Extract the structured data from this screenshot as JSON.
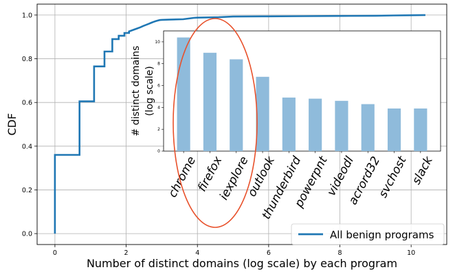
{
  "chart_data": [
    {
      "type": "line",
      "title": "",
      "xlabel": "Number of distinct domains (log scale) by each program",
      "ylabel": "CDF",
      "xlim": [
        -0.5,
        11.0
      ],
      "ylim": [
        -0.05,
        1.05
      ],
      "xticks": [
        "0",
        "2",
        "4",
        "6",
        "8",
        "10"
      ],
      "yticks": [
        "0.0",
        "0.2",
        "0.4",
        "0.6",
        "0.8",
        "1.0"
      ],
      "xtick_values": [
        0,
        2,
        4,
        6,
        8,
        10
      ],
      "ytick_values": [
        0.0,
        0.2,
        0.4,
        0.6,
        0.8,
        1.0
      ],
      "grid": true,
      "legend_position": "bottom-right",
      "series": [
        {
          "name": "All benign programs",
          "color": "#1f77b4",
          "step": true,
          "x": [
            0,
            0,
            0.69,
            0.69,
            1.1,
            1.1,
            1.39,
            1.39,
            1.61,
            1.61,
            1.79,
            1.79,
            1.95,
            1.95,
            2.08,
            2.08,
            2.2,
            2.3,
            2.4,
            2.48,
            2.56,
            2.64,
            2.71,
            2.77,
            2.83,
            2.89,
            2.94,
            3.0,
            3.2,
            3.6,
            3.9,
            4.0,
            4.6,
            5.0,
            6.0,
            7.0,
            8.0,
            9.0,
            9.5,
            10.0,
            10.4
          ],
          "y": [
            0.0,
            0.36,
            0.36,
            0.605,
            0.605,
            0.765,
            0.765,
            0.833,
            0.833,
            0.89,
            0.89,
            0.905,
            0.905,
            0.918,
            0.918,
            0.925,
            0.932,
            0.938,
            0.944,
            0.95,
            0.955,
            0.96,
            0.965,
            0.969,
            0.972,
            0.975,
            0.977,
            0.978,
            0.979,
            0.981,
            0.987,
            0.988,
            0.99,
            0.993,
            0.994,
            0.995,
            0.996,
            0.997,
            0.998,
            0.999,
            1.0
          ]
        }
      ]
    },
    {
      "type": "bar",
      "title": "",
      "xlabel": "",
      "ylabel": "# distinct domains\n(log scale)",
      "ylim": [
        0,
        11
      ],
      "yticks": [
        "0",
        "2",
        "4",
        "6",
        "8",
        "10"
      ],
      "ytick_values": [
        0,
        2,
        4,
        6,
        8,
        10
      ],
      "color": "#8fbbdb",
      "categories": [
        "chrome",
        "firefox",
        "iexplore",
        "outlook",
        "thunderbird",
        "powerpnt",
        "videodl",
        "acrord32",
        "svchost",
        "slack"
      ],
      "values": [
        10.4,
        9.0,
        8.4,
        6.8,
        4.9,
        4.8,
        4.6,
        4.3,
        3.9,
        3.9
      ]
    }
  ]
}
